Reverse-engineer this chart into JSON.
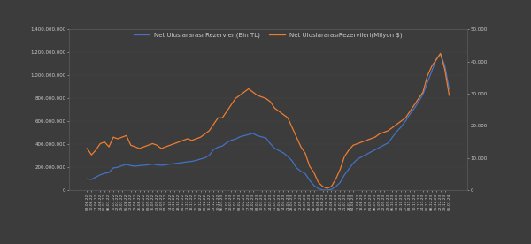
{
  "legend_labels": [
    "Net Uluslararası Rezervleri(Bin TL)",
    "Net UluslararasıRezervileri(Milyon $)"
  ],
  "line1_color": "#4472C4",
  "line2_color": "#ED7D31",
  "background_color": "#3C3C3C",
  "plot_background": "#3C3C3C",
  "grid_color": "#505050",
  "text_color": "#CCCCCC",
  "ylim_left": [
    0,
    1400000000
  ],
  "ylim_right": [
    0,
    50000
  ],
  "left_ticks": [
    0,
    200000000,
    400000000,
    600000000,
    800000000,
    1000000000,
    1200000000,
    1400000000
  ],
  "left_labels": [
    "0",
    "200.000.000",
    "400.000.000",
    "600.000.000",
    "800.000.000",
    "1.000.000.000",
    "1.200.000.000",
    "1.400.000.000"
  ],
  "right_ticks": [
    0,
    10000,
    20000,
    30000,
    40000,
    50000
  ],
  "right_labels": [
    "0",
    "10.000",
    "20.000",
    "30.000",
    "40.000",
    "50.000"
  ],
  "dates": [
    "03.06.22",
    "10.06.22",
    "17.06.22",
    "24.06.22",
    "01.07.22",
    "08.07.22",
    "15.07.22",
    "22.07.22",
    "29.07.22",
    "05.08.22",
    "12.08.22",
    "19.08.22",
    "26.08.22",
    "02.09.22",
    "09.09.22",
    "16.09.22",
    "23.09.22",
    "30.09.22",
    "07.10.22",
    "14.10.22",
    "21.10.22",
    "28.10.22",
    "04.11.22",
    "11.11.22",
    "18.11.22",
    "25.11.22",
    "02.12.22",
    "09.12.22",
    "16.12.22",
    "23.12.22",
    "30.12.22",
    "06.01.23",
    "13.01.23",
    "20.01.23",
    "27.01.23",
    "03.02.23",
    "10.02.23",
    "17.02.23",
    "24.02.23",
    "03.03.23",
    "10.03.23",
    "17.03.23",
    "24.03.23",
    "31.03.23",
    "07.04.23",
    "14.04.23",
    "21.04.23",
    "28.04.23",
    "05.05.23",
    "12.05.23",
    "19.05.23",
    "26.05.23",
    "02.06.23",
    "09.06.23",
    "16.06.23",
    "23.06.23",
    "30.06.23",
    "07.07.23",
    "14.07.23",
    "21.07.23",
    "28.07.23",
    "04.08.23",
    "11.08.23",
    "18.08.23",
    "25.08.23",
    "01.09.23",
    "08.09.23",
    "15.09.23",
    "22.09.23",
    "29.09.23",
    "06.10.23",
    "13.10.23",
    "20.10.23",
    "27.10.23",
    "03.11.23",
    "10.11.23",
    "17.11.23",
    "24.11.23",
    "01.12.23",
    "08.12.23",
    "15.12.23",
    "22.12.23",
    "29.12.23",
    "05.01.24"
  ],
  "tl_values": [
    100000000,
    95000000,
    115000000,
    135000000,
    148000000,
    155000000,
    195000000,
    200000000,
    215000000,
    225000000,
    215000000,
    210000000,
    215000000,
    218000000,
    222000000,
    228000000,
    222000000,
    218000000,
    222000000,
    228000000,
    232000000,
    237000000,
    242000000,
    248000000,
    252000000,
    260000000,
    272000000,
    282000000,
    305000000,
    355000000,
    375000000,
    385000000,
    415000000,
    435000000,
    445000000,
    465000000,
    475000000,
    485000000,
    495000000,
    475000000,
    465000000,
    455000000,
    405000000,
    365000000,
    345000000,
    325000000,
    295000000,
    255000000,
    195000000,
    165000000,
    145000000,
    88000000,
    42000000,
    15000000,
    4000000,
    2000000,
    8000000,
    32000000,
    68000000,
    135000000,
    185000000,
    235000000,
    272000000,
    292000000,
    312000000,
    332000000,
    352000000,
    372000000,
    392000000,
    412000000,
    462000000,
    512000000,
    552000000,
    602000000,
    662000000,
    712000000,
    772000000,
    835000000,
    935000000,
    1035000000,
    1135000000,
    1185000000,
    1085000000,
    882000000
  ],
  "usd_values": [
    13000,
    11000,
    12500,
    14500,
    15000,
    13500,
    16500,
    16000,
    16500,
    17000,
    14000,
    13500,
    13000,
    13500,
    14000,
    14500,
    14000,
    13000,
    13500,
    14000,
    14500,
    15000,
    15500,
    16000,
    15500,
    16000,
    16500,
    17500,
    18500,
    20500,
    22500,
    22500,
    24500,
    26500,
    28500,
    29500,
    30500,
    31500,
    30500,
    29500,
    29000,
    28500,
    27500,
    25500,
    24500,
    23500,
    22500,
    19500,
    16500,
    13500,
    11500,
    7500,
    5500,
    2500,
    1200,
    600,
    1200,
    3500,
    6500,
    10500,
    12500,
    14000,
    14500,
    15000,
    15500,
    16000,
    16500,
    17500,
    18000,
    18500,
    19500,
    20500,
    21500,
    22500,
    24500,
    26500,
    28500,
    30500,
    35500,
    38500,
    40500,
    42500,
    37500,
    29500
  ]
}
